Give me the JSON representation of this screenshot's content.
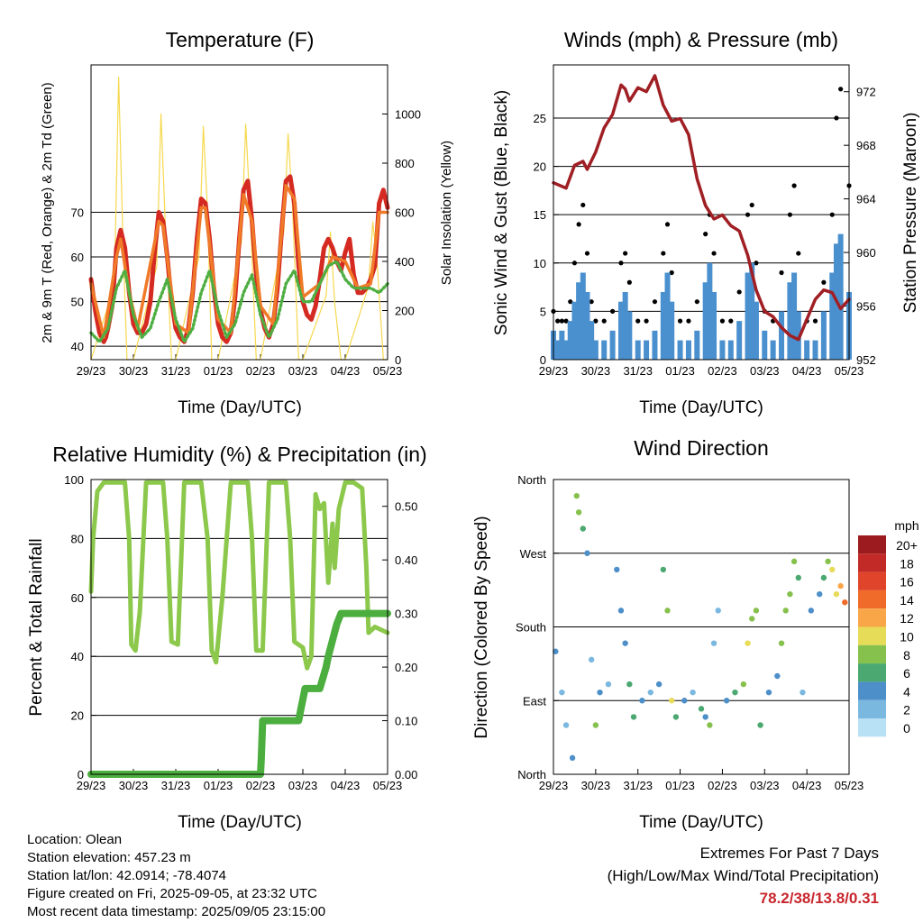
{
  "time_ticks": [
    "29/23",
    "30/23",
    "31/23",
    "01/23",
    "02/23",
    "03/23",
    "04/23",
    "05/23"
  ],
  "chart_data": [
    {
      "type": "line",
      "title": "Temperature (F)",
      "xlabel": "Time (Day/UTC)",
      "ylabel": "2m & 9m T (Red, Orange) & 2m Td (Green)",
      "ylabel_right": "Solar Insolation (Yellow)",
      "ylim": [
        37,
        103
      ],
      "y_ticks": [
        40,
        50,
        60,
        70
      ],
      "y2lim": [
        0,
        1200
      ],
      "y2_ticks": [
        0,
        200,
        400,
        600,
        800,
        1000
      ],
      "series": [
        {
          "name": "2m T",
          "color": "#d42a21",
          "x": [
            0,
            0.1,
            0.2,
            0.3,
            0.35,
            0.4,
            0.5,
            0.6,
            0.7,
            0.8,
            0.9,
            1.0,
            1.1,
            1.2,
            1.3,
            1.4,
            1.5,
            1.6,
            1.7,
            1.8,
            1.9,
            2.0,
            2.1,
            2.2,
            2.3,
            2.4,
            2.5,
            2.6,
            2.7,
            2.8,
            2.9,
            3.0,
            3.1,
            3.2,
            3.3,
            3.4,
            3.5,
            3.6,
            3.7,
            3.8,
            3.9,
            4.0,
            4.1,
            4.2,
            4.3,
            4.4,
            4.5,
            4.6,
            4.7,
            4.8,
            4.9,
            5.0,
            5.1,
            5.2,
            5.3,
            5.4,
            5.5,
            5.6,
            5.7,
            5.8,
            5.9,
            6.0,
            6.1,
            6.2,
            6.3,
            6.4,
            6.5,
            6.6,
            6.7,
            6.8,
            6.9,
            7.0
          ],
          "y": [
            55,
            48,
            43,
            41,
            42,
            44,
            49,
            62,
            66,
            62,
            52,
            45,
            43,
            43,
            45,
            50,
            61,
            70,
            68,
            60,
            50,
            44,
            42,
            41,
            44,
            52,
            64,
            73,
            72,
            64,
            53,
            45,
            42,
            41,
            43,
            51,
            64,
            75,
            77,
            68,
            56,
            48,
            44,
            42,
            45,
            53,
            66,
            77,
            78,
            72,
            58,
            50,
            47,
            46,
            49,
            55,
            62,
            64,
            62,
            59,
            57,
            61,
            64,
            56,
            52,
            52,
            53,
            55,
            58,
            72,
            75,
            71
          ]
        },
        {
          "name": "9m T",
          "color": "#f07a28",
          "x": [
            0,
            0.3,
            0.6,
            0.7,
            0.9,
            1.1,
            1.6,
            1.7,
            2.0,
            2.3,
            2.6,
            2.7,
            3.0,
            3.3,
            3.6,
            3.8,
            4.0,
            4.3,
            4.6,
            4.8,
            5.0,
            5.4,
            5.7,
            6.0,
            6.3,
            6.6,
            6.8,
            7.0
          ],
          "y": [
            54,
            42,
            60,
            64,
            52,
            44,
            68,
            67,
            45,
            43,
            71,
            71,
            46,
            43,
            74,
            68,
            49,
            45,
            76,
            73,
            51,
            54,
            60,
            59,
            53,
            54,
            70,
            70
          ]
        },
        {
          "name": "2m Td",
          "color": "#4fae42",
          "x": [
            0,
            0.2,
            0.4,
            0.6,
            0.8,
            1.0,
            1.2,
            1.4,
            1.6,
            1.8,
            2.0,
            2.2,
            2.4,
            2.6,
            2.8,
            3.0,
            3.2,
            3.4,
            3.6,
            3.8,
            4.0,
            4.2,
            4.4,
            4.6,
            4.8,
            5.0,
            5.2,
            5.4,
            5.6,
            5.8,
            6.0,
            6.2,
            6.4,
            6.6,
            6.8,
            7.0
          ],
          "y": [
            43,
            41,
            44,
            53,
            57,
            47,
            42,
            44,
            50,
            55,
            46,
            41,
            44,
            52,
            57,
            48,
            42,
            45,
            52,
            56,
            47,
            42,
            46,
            54,
            57,
            50,
            50,
            54,
            58,
            59,
            55,
            53,
            53,
            53,
            52,
            54
          ]
        },
        {
          "name": "Solar Insolation",
          "color": "#f6d84e",
          "x": [
            0,
            0.55,
            0.65,
            0.75,
            0.85,
            1.0,
            1.55,
            1.65,
            1.75,
            1.9,
            2.0,
            2.55,
            2.65,
            2.75,
            2.85,
            3.0,
            3.55,
            3.65,
            3.75,
            3.9,
            4.0,
            4.55,
            4.65,
            4.75,
            4.9,
            5.0,
            5.55,
            5.65,
            5.75,
            5.9,
            6.0,
            6.55,
            6.65,
            6.75,
            6.9,
            7.0
          ],
          "y": [
            0,
            300,
            1150,
            500,
            0,
            0,
            380,
            1000,
            560,
            0,
            0,
            420,
            950,
            600,
            0,
            0,
            480,
            960,
            620,
            0,
            0,
            520,
            920,
            640,
            0,
            0,
            260,
            520,
            230,
            0,
            0,
            300,
            560,
            400,
            0,
            0
          ]
        }
      ]
    },
    {
      "type": "scatter",
      "title": "Winds (mph) & Pressure (mb)",
      "xlabel": "Time (Day/UTC)",
      "ylabel": "Sonic Wind & Gust (Blue, Black)",
      "ylabel_right": "Station Pressure (Maroon)",
      "ylim": [
        0,
        30.5
      ],
      "y_ticks": [
        0,
        5,
        10,
        15,
        20,
        25
      ],
      "y2lim": [
        952,
        974
      ],
      "y2_ticks": [
        952,
        956,
        960,
        964,
        968,
        972
      ],
      "series": [
        {
          "name": "Sonic Wind",
          "color": "#4a90cf",
          "x": [
            0,
            0.1,
            0.2,
            0.3,
            0.4,
            0.5,
            0.6,
            0.7,
            0.8,
            0.9,
            1.0,
            1.2,
            1.4,
            1.6,
            1.7,
            1.8,
            2.0,
            2.2,
            2.4,
            2.6,
            2.7,
            2.8,
            3.0,
            3.2,
            3.4,
            3.6,
            3.7,
            3.8,
            4.0,
            4.2,
            4.4,
            4.6,
            4.7,
            4.8,
            5.0,
            5.2,
            5.4,
            5.6,
            5.7,
            5.8,
            6.0,
            6.2,
            6.4,
            6.6,
            6.7,
            6.8,
            7.0
          ],
          "y": [
            3,
            2,
            3,
            2,
            4,
            6,
            8,
            9,
            7,
            4,
            2,
            2,
            3,
            6,
            7,
            5,
            2,
            2,
            3,
            7,
            9,
            6,
            2,
            2,
            3,
            8,
            10,
            7,
            2,
            2,
            4,
            9,
            10,
            6,
            3,
            2,
            5,
            8,
            9,
            5,
            2,
            2,
            5,
            9,
            12,
            13,
            7
          ]
        },
        {
          "name": "Gust",
          "color": "#000000",
          "x": [
            0,
            0.1,
            0.2,
            0.3,
            0.4,
            0.5,
            0.6,
            0.7,
            0.8,
            0.9,
            1.0,
            1.2,
            1.4,
            1.6,
            1.7,
            1.8,
            2.0,
            2.2,
            2.4,
            2.6,
            2.7,
            2.8,
            3.0,
            3.2,
            3.4,
            3.6,
            3.7,
            3.8,
            4.0,
            4.2,
            4.4,
            4.6,
            4.7,
            4.8,
            5.0,
            5.2,
            5.4,
            5.6,
            5.7,
            5.8,
            6.0,
            6.2,
            6.4,
            6.6,
            6.7,
            6.8,
            7.0
          ],
          "y": [
            5,
            4,
            4,
            4,
            6,
            10,
            14,
            16,
            11,
            6,
            4,
            4,
            5,
            10,
            11,
            8,
            4,
            4,
            6,
            11,
            14,
            9,
            4,
            4,
            6,
            13,
            15,
            11,
            4,
            4,
            7,
            15,
            16,
            10,
            5,
            4,
            9,
            15,
            18,
            11,
            4,
            4,
            8,
            15,
            25,
            28,
            18
          ]
        },
        {
          "name": "Station Pressure",
          "color": "#a01f24",
          "x": [
            0,
            0.3,
            0.5,
            0.7,
            0.8,
            1.0,
            1.2,
            1.4,
            1.6,
            1.7,
            1.8,
            2.0,
            2.2,
            2.4,
            2.6,
            2.8,
            3.0,
            3.2,
            3.4,
            3.6,
            3.8,
            4.0,
            4.2,
            4.4,
            4.6,
            4.8,
            5.0,
            5.2,
            5.4,
            5.6,
            5.8,
            6.0,
            6.2,
            6.4,
            6.6,
            6.8,
            7.0
          ],
          "y": [
            965.2,
            964.8,
            966.5,
            966.8,
            966.2,
            967.5,
            969.3,
            970.3,
            972.5,
            972.2,
            971.3,
            972.3,
            972.0,
            973.2,
            971.0,
            969.8,
            970.0,
            968.8,
            965.5,
            963.5,
            962.5,
            962.8,
            962.0,
            961.6,
            959.8,
            957.2,
            955.6,
            955.2,
            954.4,
            953.8,
            953.5,
            955.0,
            956.5,
            957.2,
            957.0,
            955.8,
            956.5
          ]
        }
      ]
    },
    {
      "type": "line",
      "title": "Relative Humidity (%) & Precipitation (in)",
      "xlabel": "Time (Day/UTC)",
      "ylabel": "Percent & Total Rainfall",
      "ylim": [
        0,
        100
      ],
      "y_ticks": [
        0,
        20,
        40,
        60,
        80,
        100
      ],
      "y2lim": [
        0,
        0.55
      ],
      "y2_ticks": [
        "0.00",
        "0.10",
        "0.20",
        "0.30",
        "0.40",
        "0.50"
      ],
      "series": [
        {
          "name": "Relative Humidity",
          "color": "#8cc84b",
          "x": [
            0,
            0.05,
            0.15,
            0.3,
            0.5,
            0.8,
            0.9,
            0.95,
            1.05,
            1.15,
            1.3,
            1.6,
            1.7,
            1.8,
            1.9,
            2.05,
            2.2,
            2.6,
            2.75,
            2.85,
            2.95,
            3.1,
            3.3,
            3.6,
            3.7,
            3.8,
            3.9,
            4.05,
            4.2,
            4.6,
            4.7,
            4.8,
            5.0,
            5.1,
            5.2,
            5.3,
            5.4,
            5.5,
            5.6,
            5.7,
            5.75,
            5.85,
            6.0,
            6.2,
            6.4,
            6.5,
            6.55,
            6.7,
            7.0
          ],
          "y": [
            62,
            80,
            96,
            99,
            99,
            99,
            80,
            44,
            42,
            55,
            99,
            99,
            99,
            80,
            45,
            44,
            99,
            99,
            80,
            42,
            38,
            60,
            99,
            99,
            99,
            80,
            42,
            42,
            99,
            99,
            80,
            45,
            43,
            36,
            40,
            95,
            90,
            92,
            65,
            85,
            70,
            90,
            99,
            99,
            97,
            70,
            48,
            50,
            48
          ]
        },
        {
          "name": "Total Precipitation",
          "color": "#4cae3e",
          "x": [
            0,
            4.0,
            4.02,
            4.05,
            4.3,
            4.7,
            4.9,
            4.95,
            5.05,
            5.4,
            5.55,
            5.6,
            5.7,
            5.8,
            5.9,
            6.0,
            7.0
          ],
          "y": [
            0,
            0,
            0.03,
            0.1,
            0.1,
            0.1,
            0.1,
            0.12,
            0.16,
            0.16,
            0.2,
            0.22,
            0.25,
            0.28,
            0.3,
            0.3,
            0.3
          ]
        }
      ]
    },
    {
      "type": "scatter",
      "title": "Wind Direction",
      "xlabel": "Time (Day/UTC)",
      "ylabel": "Direction (Colored By Speed)",
      "y_ticks": [
        "North",
        "East",
        "South",
        "West",
        "North"
      ],
      "legend_title": "mph",
      "legend_labels": [
        "20+",
        "18",
        "16",
        "14",
        "12",
        "10",
        "8",
        "6",
        "4",
        "2",
        "0"
      ],
      "legend_colors": [
        "#9b1b1e",
        "#c22a27",
        "#e0452c",
        "#f06b2a",
        "#f9a649",
        "#e7dc58",
        "#86c14d",
        "#4ba870",
        "#4d8fc9",
        "#7ab8e0",
        "#b8e1f5"
      ],
      "series": [
        {
          "name": "Wind Direction",
          "x": [
            0.05,
            0.2,
            0.3,
            0.45,
            0.55,
            0.6,
            0.7,
            0.8,
            0.9,
            1.0,
            1.1,
            1.3,
            1.5,
            1.6,
            1.7,
            1.8,
            1.9,
            2.1,
            2.3,
            2.5,
            2.6,
            2.7,
            2.8,
            2.9,
            3.1,
            3.3,
            3.5,
            3.6,
            3.7,
            3.8,
            3.9,
            4.1,
            4.3,
            4.5,
            4.6,
            4.7,
            4.8,
            4.9,
            5.1,
            5.3,
            5.4,
            5.5,
            5.6,
            5.7,
            5.8,
            5.9,
            6.1,
            6.3,
            6.4,
            6.5,
            6.6,
            6.7,
            6.8,
            6.9
          ],
          "y": [
            150,
            100,
            60,
            20,
            340,
            320,
            300,
            270,
            140,
            60,
            100,
            110,
            250,
            200,
            160,
            110,
            70,
            90,
            100,
            110,
            250,
            200,
            90,
            70,
            90,
            100,
            80,
            70,
            60,
            160,
            200,
            90,
            100,
            110,
            160,
            190,
            200,
            60,
            100,
            120,
            160,
            200,
            220,
            260,
            240,
            100,
            200,
            220,
            240,
            260,
            250,
            220,
            230,
            210
          ],
          "speed": [
            3,
            2,
            2,
            4,
            7,
            7,
            6,
            3,
            1,
            7,
            4,
            2,
            3,
            4,
            4,
            6,
            6,
            3,
            2,
            4,
            5,
            8,
            10,
            6,
            3,
            2,
            5,
            3,
            7,
            2,
            1,
            4,
            5,
            8,
            9,
            8,
            8,
            6,
            4,
            3,
            7,
            8,
            8,
            7,
            6,
            2,
            3,
            4,
            5,
            7,
            9,
            10,
            12,
            13
          ]
        }
      ]
    }
  ],
  "footer": {
    "location": "Location: Olean",
    "elevation": "Station elevation: 457.23 m",
    "latlon": "Station lat/lon: 42.0914; -78.4074",
    "created": "Figure created on Fri, 2025-09-05, at 23:32 UTC",
    "timestamp": "Most recent data timestamp: 2025/09/05 23:15:00",
    "extremes_title": "Extremes For Past 7 Days",
    "extremes_subtitle": "(High/Low/Max Wind/Total Precipitation)",
    "extremes_values": "78.2/38/13.8/0.31"
  }
}
